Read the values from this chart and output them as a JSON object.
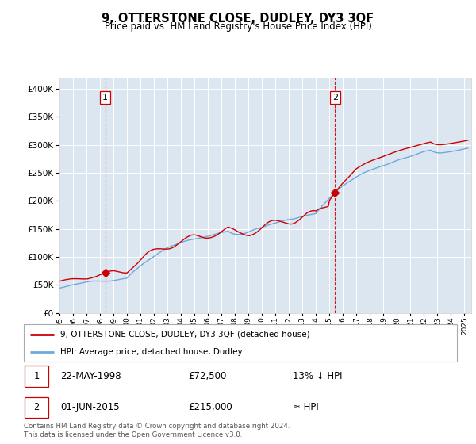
{
  "title": "9, OTTERSTONE CLOSE, DUDLEY, DY3 3QF",
  "subtitle": "Price paid vs. HM Land Registry's House Price Index (HPI)",
  "plot_bg_color": "#dce6f1",
  "ylim": [
    0,
    420000
  ],
  "yticks": [
    0,
    50000,
    100000,
    150000,
    200000,
    250000,
    300000,
    350000,
    400000
  ],
  "xlim_start": 1995.0,
  "xlim_end": 2025.5,
  "sale1_date": 1998.38,
  "sale1_price": 72500,
  "sale2_date": 2015.42,
  "sale2_price": 215000,
  "legend_line1": "9, OTTERSTONE CLOSE, DUDLEY, DY3 3QF (detached house)",
  "legend_line2": "HPI: Average price, detached house, Dudley",
  "table_row1": [
    "1",
    "22-MAY-1998",
    "£72,500",
    "13% ↓ HPI"
  ],
  "table_row2": [
    "2",
    "01-JUN-2015",
    "£215,000",
    "≈ HPI"
  ],
  "footer": "Contains HM Land Registry data © Crown copyright and database right 2024.\nThis data is licensed under the Open Government Licence v3.0.",
  "hpi_color": "#6fa8dc",
  "sale_color": "#cc0000",
  "dashed_color": "#cc0000",
  "marker_color": "#cc0000",
  "grid_color": "#ffffff",
  "spine_color": "#cccccc"
}
